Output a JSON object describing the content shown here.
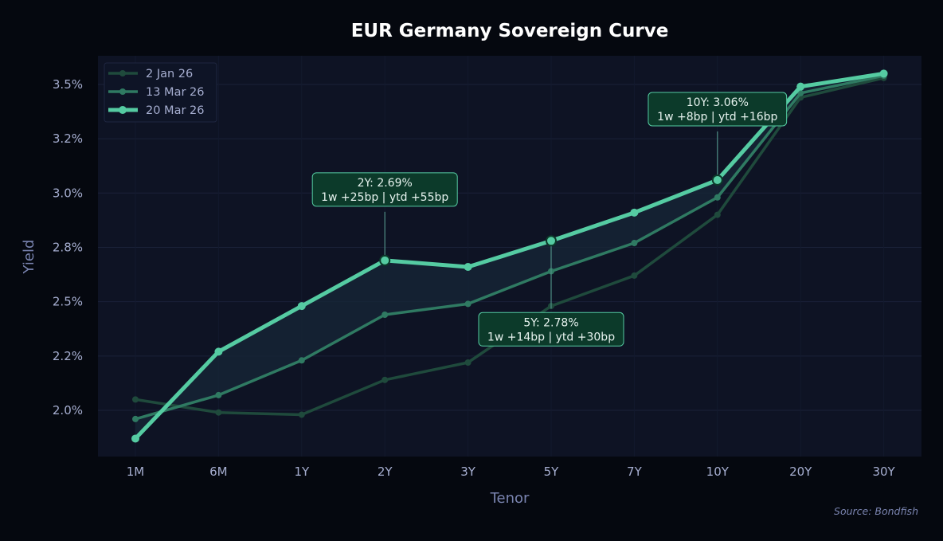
{
  "chart_data": {
    "type": "line",
    "title": "EUR Germany Sovereign Curve",
    "xlabel": "Tenor",
    "ylabel": "Yield",
    "categories": [
      "1M",
      "6M",
      "1Y",
      "2Y",
      "3Y",
      "5Y",
      "7Y",
      "10Y",
      "20Y",
      "30Y"
    ],
    "ylim": [
      1.79,
      3.63
    ],
    "yticks": [
      2.0,
      2.25,
      2.5,
      2.75,
      3.0,
      3.25,
      3.5
    ],
    "ytick_labels": [
      "2.0%",
      "2.2%",
      "2.5%",
      "2.8%",
      "3.0%",
      "3.2%",
      "3.5%"
    ],
    "grid": true,
    "legend_position": "top-left",
    "series": [
      {
        "name": "2 Jan 26",
        "color": "#1f4a3c",
        "values": [
          2.05,
          1.99,
          1.98,
          2.14,
          2.22,
          2.48,
          2.62,
          2.9,
          3.44,
          3.53
        ]
      },
      {
        "name": "13 Mar 26",
        "color": "#2f7a62",
        "values": [
          1.96,
          2.07,
          2.23,
          2.44,
          2.49,
          2.64,
          2.77,
          2.98,
          3.46,
          3.54
        ]
      },
      {
        "name": "20 Mar 26",
        "color": "#55cba2",
        "values": [
          1.87,
          2.27,
          2.48,
          2.69,
          2.66,
          2.78,
          2.91,
          3.06,
          3.49,
          3.55
        ]
      }
    ],
    "annotations": [
      {
        "tenor": "2Y",
        "line1": "2Y: 2.69%",
        "line2": "1w +25bp | ytd +55bp",
        "placement": "above"
      },
      {
        "tenor": "5Y",
        "line1": "5Y: 2.78%",
        "line2": "1w +14bp | ytd +30bp",
        "placement": "below"
      },
      {
        "tenor": "10Y",
        "line1": "10Y: 3.06%",
        "line2": "1w +8bp | ytd +16bp",
        "placement": "above"
      }
    ],
    "source": "Source: Bondfish"
  }
}
